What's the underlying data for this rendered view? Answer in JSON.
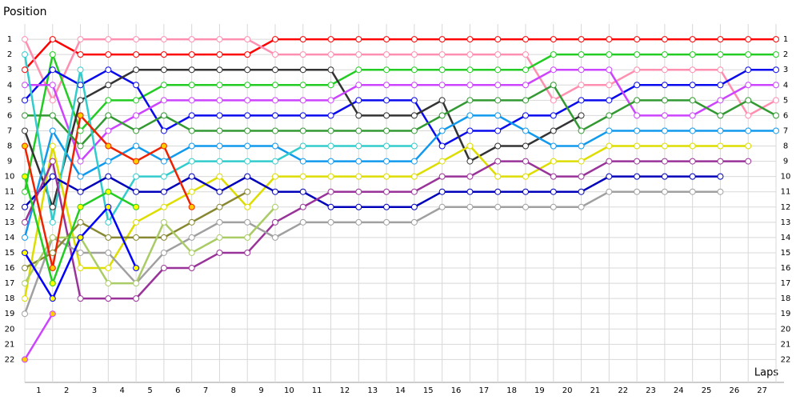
{
  "chart_data": {
    "type": "line",
    "title": "Position",
    "x_label": "Laps",
    "x": [
      0,
      1,
      2,
      3,
      4,
      5,
      6,
      7,
      8,
      9,
      10,
      11,
      12,
      13,
      14,
      15,
      16,
      17,
      18,
      19,
      20,
      21,
      22,
      23,
      24,
      25,
      26,
      27
    ],
    "xlim": [
      0,
      27
    ],
    "xticks": [
      {
        "value": 0.5,
        "label": "1"
      },
      {
        "value": 1.5,
        "label": "2"
      },
      {
        "value": 2.5,
        "label": "3"
      },
      {
        "value": 3.5,
        "label": "4"
      },
      {
        "value": 4.5,
        "label": "5"
      },
      {
        "value": 5.5,
        "label": "6"
      },
      {
        "value": 6.5,
        "label": "7"
      },
      {
        "value": 7.5,
        "label": "8"
      },
      {
        "value": 8.5,
        "label": "9"
      },
      {
        "value": 9.5,
        "label": "10"
      },
      {
        "value": 10.5,
        "label": "11"
      },
      {
        "value": 11.5,
        "label": "12"
      },
      {
        "value": 12.5,
        "label": "13"
      },
      {
        "value": 13.5,
        "label": "14"
      },
      {
        "value": 14.5,
        "label": "15"
      },
      {
        "value": 15.5,
        "label": "16"
      },
      {
        "value": 16.5,
        "label": "17"
      },
      {
        "value": 17.5,
        "label": "18"
      },
      {
        "value": 18.5,
        "label": "19"
      },
      {
        "value": 19.5,
        "label": "20"
      },
      {
        "value": 20.5,
        "label": "21"
      },
      {
        "value": 21.5,
        "label": "22"
      },
      {
        "value": 22.5,
        "label": "23"
      },
      {
        "value": 23.5,
        "label": "24"
      },
      {
        "value": 24.5,
        "label": "25"
      },
      {
        "value": 25.5,
        "label": "26"
      },
      {
        "value": 26.5,
        "label": "27"
      }
    ],
    "ylim": [
      0,
      23.5
    ],
    "y_inverted": true,
    "yticks": [
      1,
      2,
      3,
      4,
      5,
      6,
      7,
      8,
      9,
      10,
      11,
      12,
      13,
      14,
      15,
      16,
      17,
      18,
      19,
      20,
      21,
      22
    ],
    "grid": true,
    "series": [
      {
        "color": "#ff0000",
        "values": [
          3,
          1,
          2,
          2,
          2,
          2,
          2,
          2,
          2,
          1,
          1,
          1,
          1,
          1,
          1,
          1,
          1,
          1,
          1,
          1,
          1,
          1,
          1,
          1,
          1,
          1,
          1,
          1
        ]
      },
      {
        "color": "#ff8fb0",
        "values": [
          1,
          5,
          1,
          1,
          1,
          1,
          1,
          1,
          1,
          2,
          2,
          2,
          2,
          2,
          2,
          2,
          2,
          2,
          2,
          5,
          4,
          4,
          3,
          3,
          3,
          3,
          6,
          5
        ]
      },
      {
        "color": "#22cc22",
        "values": [
          11,
          2,
          7,
          5,
          5,
          4,
          4,
          4,
          4,
          4,
          4,
          4,
          3,
          3,
          3,
          3,
          3,
          3,
          3,
          2,
          2,
          2,
          2,
          2,
          2,
          2,
          2,
          2
        ]
      },
      {
        "color": "#0a0aee",
        "values": [
          5,
          3,
          4,
          3,
          4,
          7,
          6,
          6,
          6,
          6,
          6,
          6,
          5,
          5,
          5,
          8,
          7,
          7,
          6,
          6,
          5,
          5,
          4,
          4,
          4,
          4,
          3,
          3
        ]
      },
      {
        "color": "#333333",
        "values": [
          7,
          12,
          5,
          4,
          3,
          3,
          3,
          3,
          3,
          3,
          3,
          3,
          6,
          6,
          6,
          5,
          9,
          8,
          8,
          7,
          6,
          null,
          null,
          null,
          null,
          null,
          null,
          null
        ]
      },
      {
        "color": "#cc44ff",
        "values": [
          4,
          4,
          9,
          7,
          6,
          5,
          5,
          5,
          5,
          5,
          5,
          5,
          4,
          4,
          4,
          4,
          4,
          4,
          4,
          3,
          3,
          3,
          6,
          6,
          6,
          5,
          4,
          4
        ]
      },
      {
        "color": "#339933",
        "values": [
          6,
          6,
          8,
          6,
          7,
          6,
          7,
          7,
          7,
          7,
          7,
          7,
          7,
          7,
          7,
          6,
          5,
          5,
          5,
          4,
          7,
          6,
          5,
          5,
          5,
          6,
          5,
          6
        ]
      },
      {
        "color": "#1199ee",
        "values": [
          14,
          7,
          10,
          9,
          8,
          9,
          8,
          8,
          8,
          8,
          9,
          9,
          9,
          9,
          9,
          7,
          6,
          6,
          7,
          8,
          8,
          7,
          7,
          7,
          7,
          7,
          7,
          7
        ]
      },
      {
        "color": "#33cccc",
        "values": [
          2,
          13,
          3,
          13,
          10,
          10,
          9,
          9,
          9,
          9,
          8,
          8,
          8,
          8,
          8,
          null,
          null,
          null,
          null,
          null,
          null,
          null,
          null,
          null,
          null,
          null,
          null,
          null
        ]
      },
      {
        "color": "#dddd00",
        "values": [
          18,
          8,
          16,
          16,
          13,
          12,
          11,
          10,
          12,
          10,
          10,
          10,
          10,
          10,
          10,
          9,
          8,
          10,
          10,
          9,
          9,
          8,
          8,
          8,
          8,
          8,
          8,
          null
        ]
      },
      {
        "color": "#0000bb",
        "values": [
          12,
          10,
          11,
          10,
          11,
          11,
          10,
          11,
          10,
          11,
          11,
          12,
          12,
          12,
          12,
          11,
          11,
          11,
          11,
          11,
          11,
          10,
          10,
          10,
          10,
          10,
          null,
          null
        ]
      },
      {
        "color": "#993399",
        "values": [
          13,
          9,
          18,
          18,
          18,
          16,
          16,
          15,
          15,
          13,
          12,
          11,
          11,
          11,
          11,
          10,
          10,
          9,
          9,
          10,
          10,
          9,
          9,
          9,
          9,
          9,
          9,
          null
        ]
      },
      {
        "color": "#a0a0a0",
        "values": [
          19,
          14,
          15,
          15,
          17,
          15,
          14,
          13,
          13,
          14,
          13,
          13,
          13,
          13,
          13,
          12,
          12,
          12,
          12,
          12,
          12,
          11,
          11,
          11,
          11,
          11,
          null,
          null
        ]
      },
      {
        "color": "#888833",
        "values": [
          16,
          15,
          13,
          14,
          14,
          14,
          13,
          12,
          11,
          null,
          null,
          null,
          null,
          null,
          null,
          null,
          null,
          null,
          null,
          null,
          null,
          null,
          null,
          null,
          null,
          null,
          null,
          null
        ]
      },
      {
        "color": "#aacc66",
        "values": [
          17,
          14,
          14,
          17,
          17,
          13,
          15,
          14,
          14,
          12,
          null,
          null,
          null,
          null,
          null,
          null,
          null,
          null,
          null,
          null,
          null,
          null,
          null,
          null,
          null,
          null,
          null,
          null
        ]
      },
      {
        "color": "#22cc22",
        "marker_fill": "#ffff00",
        "values": [
          10,
          17,
          12,
          11,
          12,
          null,
          null,
          null,
          null,
          null,
          null,
          null,
          null,
          null,
          null,
          null,
          null,
          null,
          null,
          null,
          null,
          null,
          null,
          null,
          null,
          null,
          null,
          null
        ]
      },
      {
        "color": "#0000ff",
        "marker_fill": "#ffff00",
        "values": [
          15,
          18,
          14,
          12,
          16,
          null,
          null,
          null,
          null,
          null,
          null,
          null,
          null,
          null,
          null,
          null,
          null,
          null,
          null,
          null,
          null,
          null,
          null,
          null,
          null,
          null,
          null,
          null
        ]
      },
      {
        "color": "#ee2200",
        "marker_fill": "#ffcc00",
        "values": [
          8,
          16,
          6,
          8,
          9,
          8,
          12,
          null,
          null,
          null,
          null,
          null,
          null,
          null,
          null,
          null,
          null,
          null,
          null,
          null,
          null,
          null,
          null,
          null,
          null,
          null,
          null,
          null
        ]
      },
      {
        "color": "#cc44ff",
        "marker_fill": "#ffcc00",
        "values": [
          22,
          19,
          null,
          null,
          null,
          null,
          null,
          null,
          null,
          null,
          null,
          null,
          null,
          null,
          null,
          null,
          null,
          null,
          null,
          null,
          null,
          null,
          null,
          null,
          null,
          null,
          null,
          null
        ]
      }
    ]
  }
}
